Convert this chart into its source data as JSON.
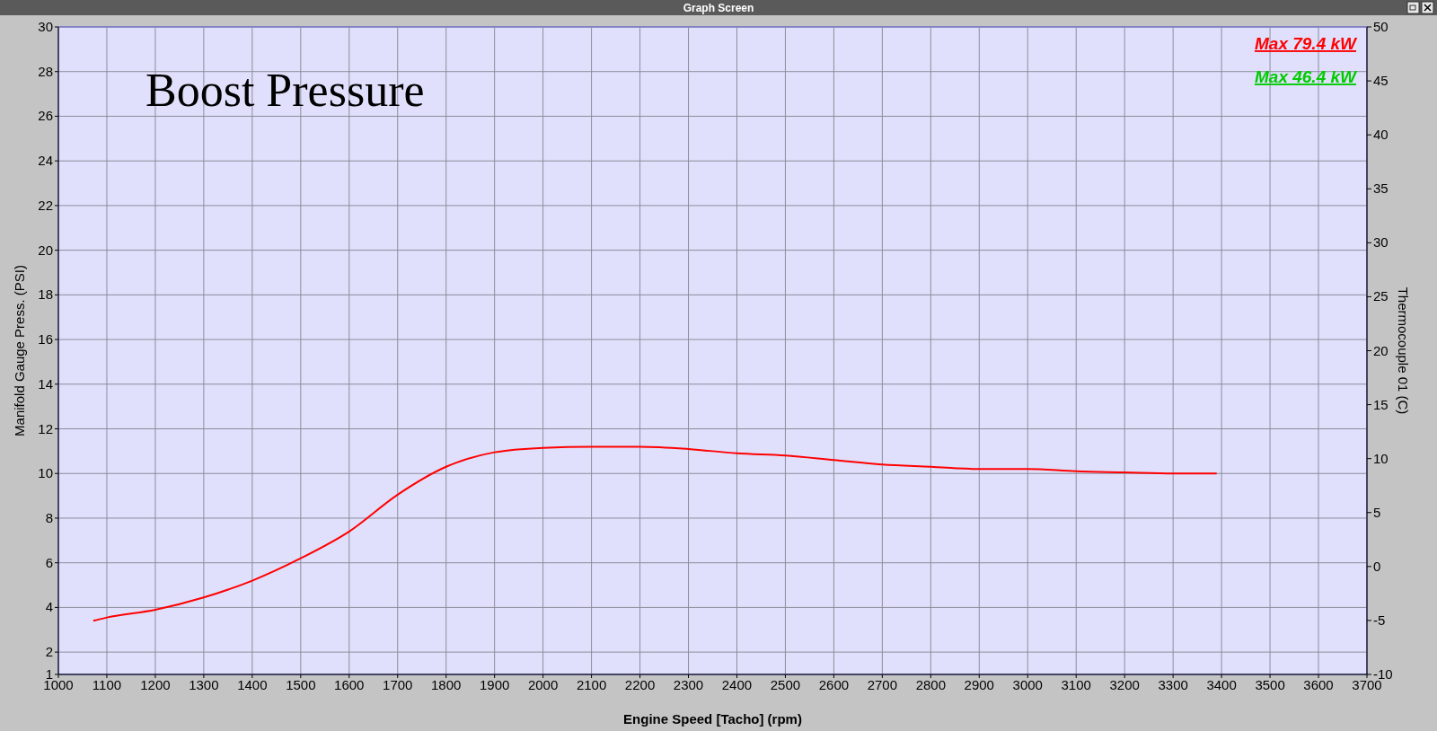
{
  "chart_data": {
    "type": "line",
    "title": "Boost Pressure",
    "xlabel": "Engine Speed [Tacho] (rpm)",
    "ylabel": "Manifold Gauge Press. (PSI)",
    "y2label": "Thermocouple 01 (C)",
    "annotations": [
      "Graph Screen",
      "Max 79.4 kW",
      "Max 46.4 kW"
    ],
    "series": [
      {
        "color": "#ff0000",
        "x": [
          1072,
          1100,
          1200,
          1300,
          1400,
          1500,
          1600,
          1700,
          1800,
          1900,
          2000,
          2100,
          2200,
          2300,
          2400,
          2500,
          2600,
          2700,
          2800,
          2900,
          3000,
          3100,
          3200,
          3300,
          3390
        ],
        "values": [
          3.4,
          3.55,
          3.9,
          4.45,
          5.2,
          6.2,
          7.4,
          9.05,
          10.3,
          10.95,
          11.15,
          11.2,
          11.2,
          11.1,
          10.9,
          10.8,
          10.6,
          10.4,
          10.3,
          10.2,
          10.2,
          10.1,
          10.05,
          10.0,
          10.0
        ]
      }
    ],
    "xlim": [
      1000,
      3700
    ],
    "xticks": [
      1000,
      1100,
      1200,
      1300,
      1400,
      1500,
      1600,
      1700,
      1800,
      1900,
      2000,
      2100,
      2200,
      2300,
      2400,
      2500,
      2600,
      2700,
      2800,
      2900,
      3000,
      3100,
      3200,
      3300,
      3400,
      3500,
      3600,
      3700
    ],
    "ylim": [
      1,
      30
    ],
    "yticks": [
      1,
      2,
      4,
      6,
      8,
      10,
      12,
      14,
      16,
      18,
      20,
      22,
      24,
      26,
      28,
      30
    ],
    "y2lim": [
      -10,
      50
    ],
    "y2ticks": [
      -10,
      -5,
      0,
      5,
      10,
      15,
      20,
      25,
      30,
      35,
      40,
      45,
      50
    ],
    "grid": true,
    "line_style": "solid"
  }
}
